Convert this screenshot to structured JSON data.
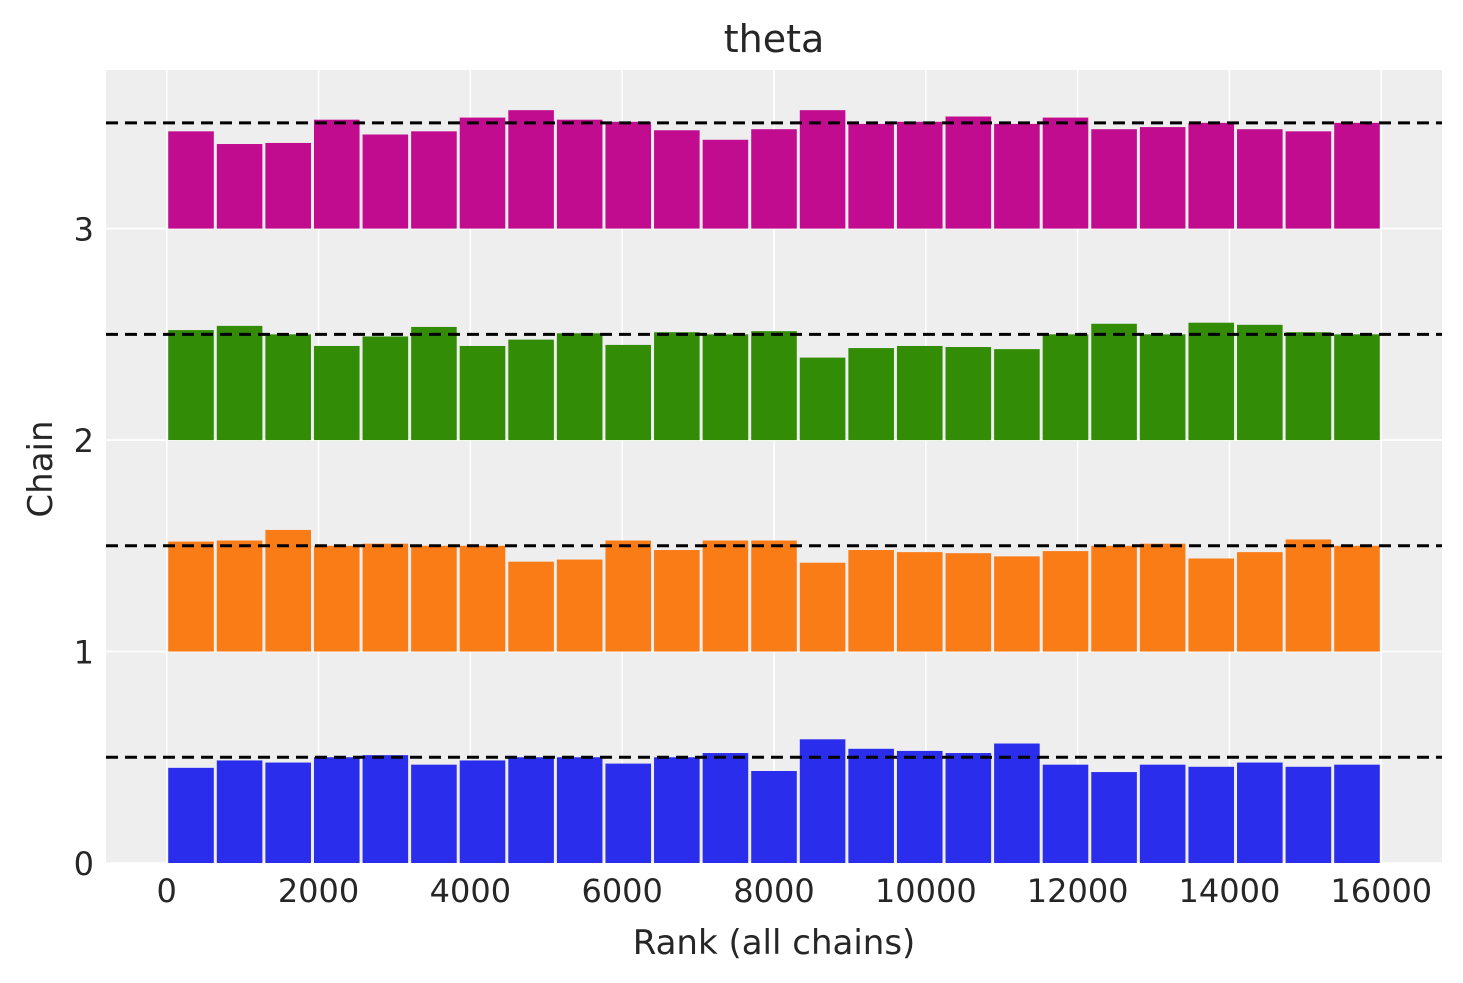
{
  "chart_data": {
    "type": "bar",
    "title": "theta",
    "xlabel": "Rank (all chains)",
    "ylabel": "Chain",
    "xlim": [
      -800,
      16800
    ],
    "ylim": [
      0,
      3.75
    ],
    "xticks": [
      0,
      2000,
      4000,
      6000,
      8000,
      10000,
      12000,
      14000,
      16000
    ],
    "xtick_labels": [
      "0",
      "2000",
      "4000",
      "6000",
      "8000",
      "10000",
      "12000",
      "14000",
      "16000"
    ],
    "yticks": [
      0,
      1,
      2,
      3
    ],
    "ytick_labels": [
      "0",
      "1",
      "2",
      "3"
    ],
    "grid": true,
    "bins": 25,
    "bin_width": 640,
    "bin_start": 0,
    "reference_line_height": 0.5,
    "reference_line_style": "dashed",
    "series": [
      {
        "offset": 0,
        "color": "#2a2eec",
        "values": [
          0.45,
          0.485,
          0.475,
          0.5,
          0.51,
          0.465,
          0.485,
          0.5,
          0.5,
          0.47,
          0.5,
          0.52,
          0.435,
          0.585,
          0.54,
          0.53,
          0.52,
          0.565,
          0.465,
          0.43,
          0.465,
          0.455,
          0.475,
          0.455,
          0.465
        ]
      },
      {
        "offset": 1,
        "color": "#fa7c17",
        "values": [
          0.52,
          0.525,
          0.575,
          0.5,
          0.51,
          0.5,
          0.5,
          0.425,
          0.435,
          0.525,
          0.48,
          0.525,
          0.525,
          0.42,
          0.48,
          0.47,
          0.465,
          0.45,
          0.475,
          0.5,
          0.51,
          0.44,
          0.47,
          0.53,
          0.5
        ]
      },
      {
        "offset": 2,
        "color": "#328c06",
        "values": [
          0.52,
          0.54,
          0.5,
          0.445,
          0.49,
          0.535,
          0.445,
          0.475,
          0.505,
          0.45,
          0.51,
          0.5,
          0.515,
          0.39,
          0.435,
          0.445,
          0.44,
          0.43,
          0.5,
          0.55,
          0.5,
          0.555,
          0.545,
          0.51,
          0.5
        ]
      },
      {
        "offset": 3,
        "color": "#c10c90",
        "values": [
          0.46,
          0.4,
          0.405,
          0.515,
          0.445,
          0.46,
          0.525,
          0.56,
          0.515,
          0.505,
          0.465,
          0.42,
          0.47,
          0.56,
          0.495,
          0.505,
          0.53,
          0.495,
          0.525,
          0.47,
          0.48,
          0.5,
          0.47,
          0.46,
          0.5
        ]
      }
    ]
  }
}
